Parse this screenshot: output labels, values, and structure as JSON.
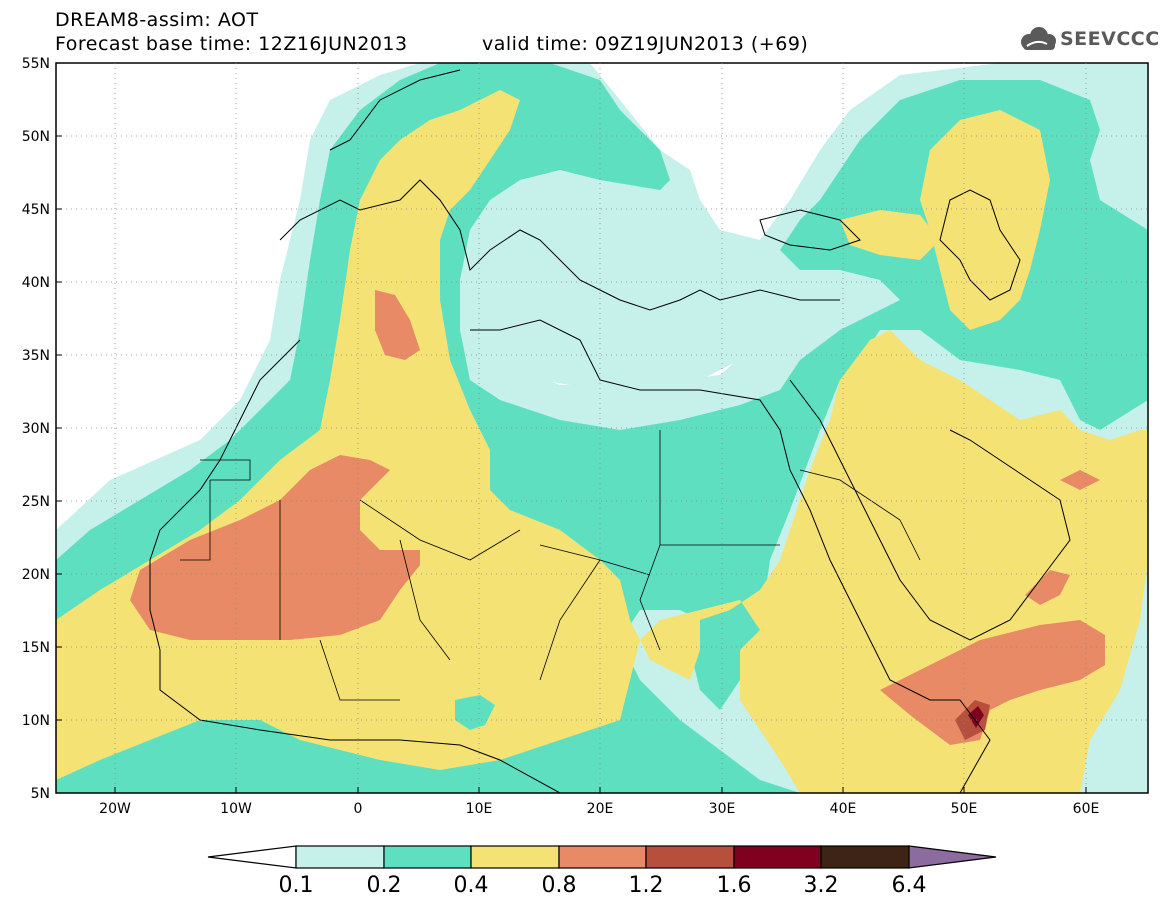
{
  "header": {
    "title": "DREAM8-assim: AOT",
    "base_time": "Forecast base time: 12Z16JUN2013",
    "valid_time": "valid time: 09Z19JUN2013 (+69)"
  },
  "logo": {
    "text": "SEEVCCC",
    "icon": "cloud-logo-icon"
  },
  "map": {
    "lat_labels": [
      "55N",
      "50N",
      "45N",
      "40N",
      "35N",
      "30N",
      "25N",
      "20N",
      "15N",
      "10N",
      "5N"
    ],
    "lon_labels": [
      "20W",
      "10W",
      "0",
      "10E",
      "20E",
      "30E",
      "40E",
      "50E",
      "60E"
    ]
  },
  "colorbar": {
    "labels": [
      "0.1",
      "0.2",
      "0.4",
      "0.8",
      "1.2",
      "1.6",
      "3.2",
      "6.4"
    ],
    "colors": {
      "under": "#ffffff",
      "c1": "#c6f0ea",
      "c2": "#5ee0c0",
      "c3": "#f5e274",
      "c4": "#e88a66",
      "c5": "#b6503c",
      "c6": "#800020",
      "c7": "#3d2414",
      "over": "#8b6ba0"
    }
  }
}
